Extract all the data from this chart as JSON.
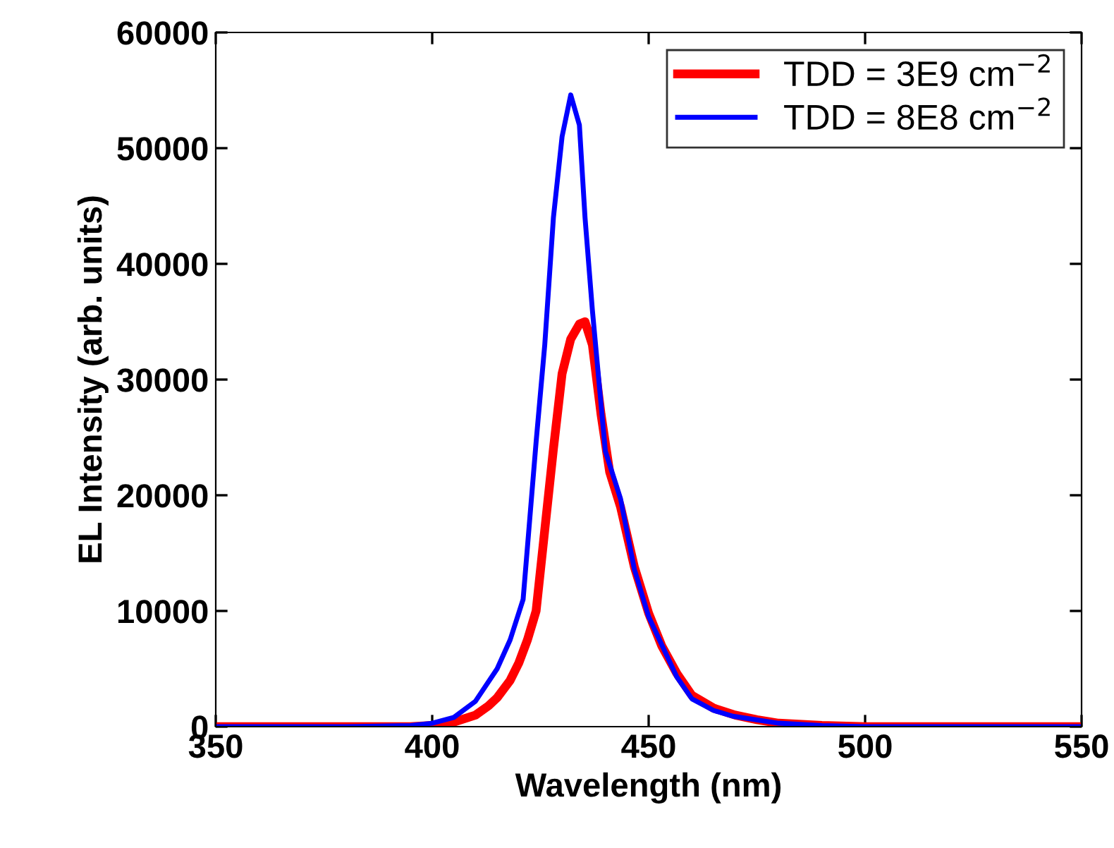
{
  "chart_data": {
    "type": "line",
    "xlabel": "Wavelength (nm)",
    "ylabel": "EL Intensity (arb. units)",
    "xlim": [
      350,
      550
    ],
    "xticks": [
      350,
      400,
      450,
      500,
      550
    ],
    "ylim": [
      0,
      60000
    ],
    "yticks": [
      0,
      10000,
      20000,
      30000,
      40000,
      50000,
      60000
    ],
    "grid": false,
    "legend": "top right",
    "marker": "none",
    "line_style": "solid",
    "series": [
      {
        "name": "TDD = 3E9 cm$^{−2}$",
        "color": "#ff0000",
        "x": [
          350,
          380,
          395,
          400,
          405,
          410,
          413,
          415,
          418,
          420,
          422,
          424,
          426,
          428,
          430,
          432,
          434,
          435.3,
          437,
          439,
          441,
          443.5,
          446.7,
          450,
          453,
          456.5,
          460,
          465,
          470,
          475,
          480,
          490,
          500,
          520,
          550
        ],
        "values": [
          0,
          0,
          0,
          100,
          400,
          1000,
          1800,
          2500,
          4000,
          5500,
          7500,
          10000,
          17000,
          24000,
          30500,
          33500,
          34800,
          35000,
          33000,
          27000,
          22000,
          19000,
          13800,
          9800,
          7000,
          4600,
          2700,
          1600,
          1000,
          600,
          300,
          100,
          0,
          0,
          0
        ]
      },
      {
        "name": "TDD = 8E8 cm$^{−2}$",
        "color": "#0000ff",
        "x": [
          350,
          380,
          395,
          400,
          405,
          410,
          415,
          418,
          421,
          424,
          426,
          428,
          430,
          432,
          434,
          435.3,
          437,
          440,
          443.5,
          446.7,
          450,
          456.5,
          460,
          465,
          469.5,
          480,
          490,
          500,
          520,
          550
        ],
        "values": [
          0,
          0,
          100,
          300,
          800,
          2200,
          5000,
          7500,
          11000,
          24600,
          33000,
          44000,
          51000,
          54600,
          52000,
          44000,
          36000,
          23800,
          19700,
          13600,
          9500,
          4300,
          2400,
          1400,
          900,
          300,
          100,
          0,
          0,
          0
        ]
      }
    ]
  }
}
